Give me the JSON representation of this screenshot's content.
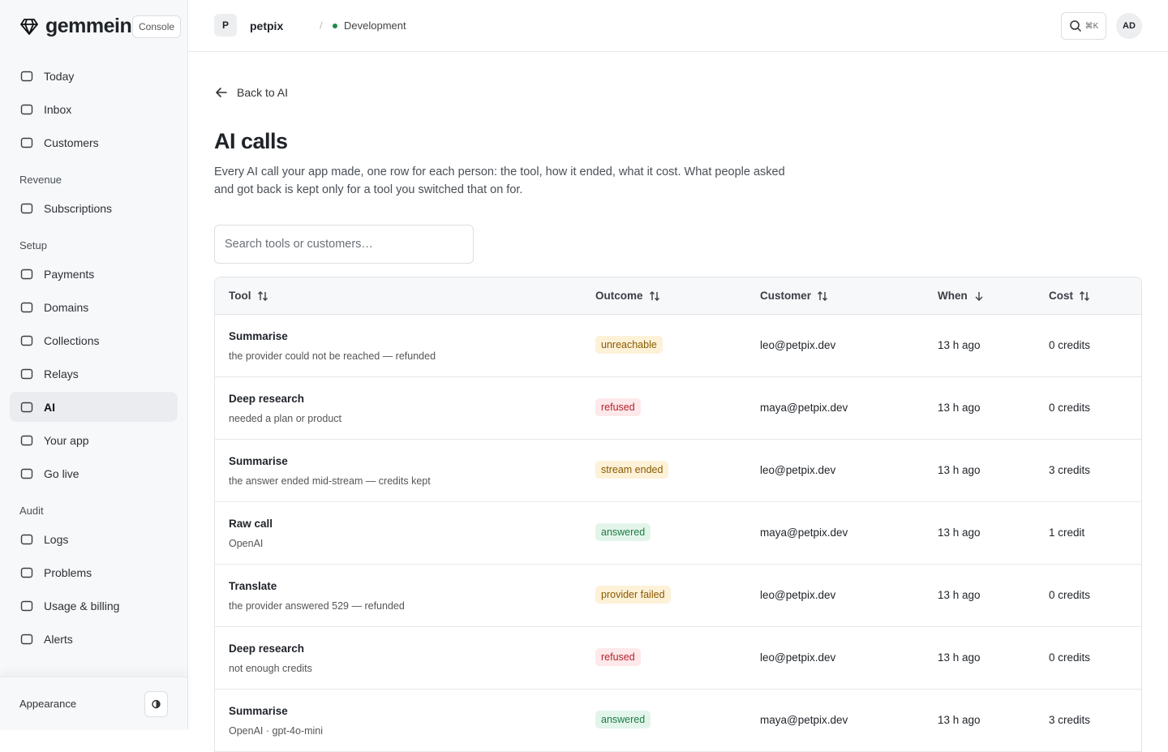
{
  "sidebar": {
    "brand": "gemmein",
    "badge": "Console",
    "top_items": [
      {
        "label": "Today",
        "active": false
      },
      {
        "label": "Inbox",
        "active": false
      },
      {
        "label": "Customers",
        "active": false
      }
    ],
    "groups": [
      {
        "label": "Revenue",
        "items": [
          {
            "label": "Subscriptions",
            "active": false
          }
        ]
      },
      {
        "label": "Setup",
        "items": [
          {
            "label": "Payments",
            "active": false
          },
          {
            "label": "Domains",
            "active": false
          },
          {
            "label": "Collections",
            "active": false
          },
          {
            "label": "Relays",
            "active": false
          },
          {
            "label": "AI",
            "active": true
          },
          {
            "label": "Your app",
            "active": false
          },
          {
            "label": "Go live",
            "active": false
          }
        ]
      },
      {
        "label": "Audit",
        "items": [
          {
            "label": "Logs",
            "active": false
          },
          {
            "label": "Problems",
            "active": false
          },
          {
            "label": "Usage & billing",
            "active": false
          },
          {
            "label": "Alerts",
            "active": false
          }
        ]
      }
    ],
    "footer": {
      "label": "Appearance"
    }
  },
  "topbar": {
    "project_initial": "P",
    "project": "petpix",
    "separator": "/",
    "environment": "Development",
    "search_shortcut": "⌘K",
    "avatar": "AD"
  },
  "page": {
    "back": "Back to AI",
    "title": "AI calls",
    "description": "Every AI call your app made, one row for each person: the tool, how it ended, what it cost. What people asked and got back is kept only for a tool you switched that on for.",
    "search_placeholder": "Search tools or customers…"
  },
  "table": {
    "columns": [
      {
        "label": "Tool",
        "sort": "both"
      },
      {
        "label": "Outcome",
        "sort": "both"
      },
      {
        "label": "Customer",
        "sort": "both"
      },
      {
        "label": "When",
        "sort": "desc"
      },
      {
        "label": "Cost",
        "sort": "both"
      }
    ],
    "rows": [
      {
        "tool": "Summarise",
        "detail": "the provider could not be reached — refunded",
        "outcome": "unreachable",
        "tone": "amber",
        "customer": "leo@petpix.dev",
        "when": "13 h ago",
        "cost": "0 credits"
      },
      {
        "tool": "Deep research",
        "detail": "needed a plan or product",
        "outcome": "refused",
        "tone": "red",
        "customer": "maya@petpix.dev",
        "when": "13 h ago",
        "cost": "0 credits"
      },
      {
        "tool": "Summarise",
        "detail": "the answer ended mid-stream — credits kept",
        "outcome": "stream ended",
        "tone": "amber",
        "customer": "leo@petpix.dev",
        "when": "13 h ago",
        "cost": "3 credits"
      },
      {
        "tool": "Raw call",
        "detail": "OpenAI",
        "outcome": "answered",
        "tone": "green",
        "customer": "maya@petpix.dev",
        "when": "13 h ago",
        "cost": "1 credit"
      },
      {
        "tool": "Translate",
        "detail": "the provider answered 529 — refunded",
        "outcome": "provider failed",
        "tone": "amber",
        "customer": "leo@petpix.dev",
        "when": "13 h ago",
        "cost": "0 credits"
      },
      {
        "tool": "Deep research",
        "detail": "not enough credits",
        "outcome": "refused",
        "tone": "red",
        "customer": "leo@petpix.dev",
        "when": "13 h ago",
        "cost": "0 credits"
      },
      {
        "tool": "Summarise",
        "detail": "OpenAI · gpt-4o-mini",
        "outcome": "answered",
        "tone": "green",
        "customer": "maya@petpix.dev",
        "when": "13 h ago",
        "cost": "3 credits"
      }
    ]
  }
}
